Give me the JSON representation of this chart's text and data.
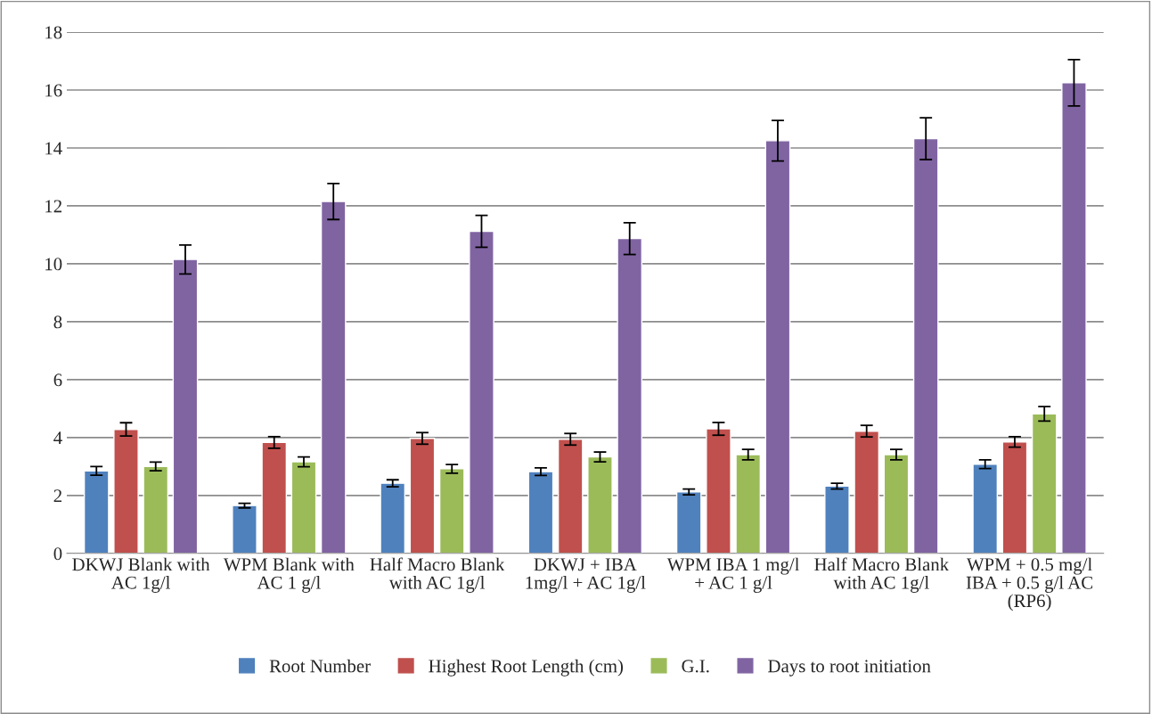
{
  "chart_data": {
    "type": "bar",
    "categories": [
      "DKWJ Blank with AC 1g/l",
      "WPM Blank with AC 1 g/l",
      "Half Macro Blank with AC 1g/l",
      "DKWJ + IBA 1mg/l + AC 1g/l",
      "WPM IBA 1 mg/l + AC 1 g/l",
      "Half Macro Blank with AC 1g/l",
      "WPM + 0.5 mg/l IBA + 0.5 g/l AC (RP6)"
    ],
    "series": [
      {
        "name": "Root Number",
        "color": "#4f81bd",
        "values": [
          2.85,
          1.65,
          2.42,
          2.82,
          2.12,
          2.32,
          3.08
        ],
        "errors": [
          0.15,
          0.08,
          0.12,
          0.13,
          0.1,
          0.1,
          0.15
        ]
      },
      {
        "name": "Highest Root Length (cm)",
        "color": "#c0504d",
        "values": [
          4.28,
          3.83,
          3.97,
          3.94,
          4.3,
          4.22,
          3.85
        ],
        "errors": [
          0.23,
          0.2,
          0.2,
          0.2,
          0.22,
          0.2,
          0.18
        ]
      },
      {
        "name": "G.I.",
        "color": "#9bbb59",
        "values": [
          3.0,
          3.16,
          2.92,
          3.33,
          3.41,
          3.41,
          4.82
        ],
        "errors": [
          0.15,
          0.17,
          0.15,
          0.17,
          0.18,
          0.18,
          0.25
        ]
      },
      {
        "name": "Days to root initiation",
        "color": "#8064a2",
        "values": [
          10.15,
          12.15,
          11.12,
          10.87,
          14.25,
          14.32,
          16.25
        ],
        "errors": [
          0.5,
          0.62,
          0.55,
          0.55,
          0.7,
          0.72,
          0.8
        ]
      }
    ],
    "ylim": [
      0,
      18
    ],
    "yticks": [
      0,
      2,
      4,
      6,
      8,
      10,
      12,
      14,
      16,
      18
    ],
    "grid": "y",
    "legend": "bottom"
  }
}
